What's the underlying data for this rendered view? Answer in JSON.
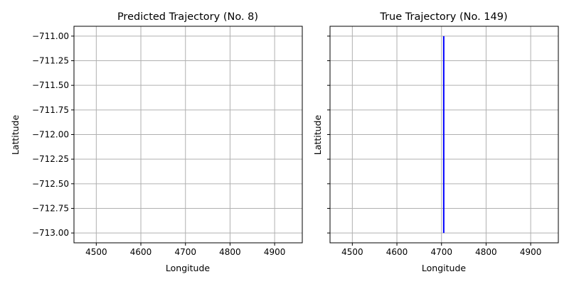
{
  "chart_data": [
    {
      "type": "line",
      "title": "Predicted Trajectory (No. 8)",
      "xlabel": "Longitude",
      "ylabel": "Lattitude",
      "xlim": [
        4450,
        4962
      ],
      "ylim": [
        -713.1,
        -710.9
      ],
      "xticks": [
        4500,
        4600,
        4700,
        4800,
        4900
      ],
      "yticks": [
        -711.0,
        -711.25,
        -711.5,
        -711.75,
        -712.0,
        -712.25,
        -712.5,
        -712.75,
        -713.0
      ],
      "xtick_labels": [
        "4500",
        "4600",
        "4700",
        "4800",
        "4900"
      ],
      "ytick_labels": [
        "−711.00",
        "−711.25",
        "−711.50",
        "−711.75",
        "−712.00",
        "−712.25",
        "−712.50",
        "−712.75",
        "−713.00"
      ],
      "grid": true,
      "series": [
        {
          "color": "#ff0000",
          "x": [],
          "y": []
        }
      ]
    },
    {
      "type": "line",
      "title": "True Trajectory (No. 149)",
      "xlabel": "Longitude",
      "ylabel": "Lattitude",
      "xlim": [
        4450,
        4962
      ],
      "ylim": [
        -713.1,
        -710.9
      ],
      "xticks": [
        4500,
        4600,
        4700,
        4800,
        4900
      ],
      "yticks": [
        -711.0,
        -711.25,
        -711.5,
        -711.75,
        -712.0,
        -712.25,
        -712.5,
        -712.75,
        -713.0
      ],
      "xtick_labels": [
        "4500",
        "4600",
        "4700",
        "4800",
        "4900"
      ],
      "ytick_labels": [
        "",
        "",
        "",
        "",
        "",
        "",
        "",
        "",
        ""
      ],
      "grid": true,
      "series": [
        {
          "color": "#0000ff",
          "x": [
            4705,
            4705
          ],
          "y": [
            -711.0,
            -713.0
          ]
        }
      ]
    }
  ]
}
